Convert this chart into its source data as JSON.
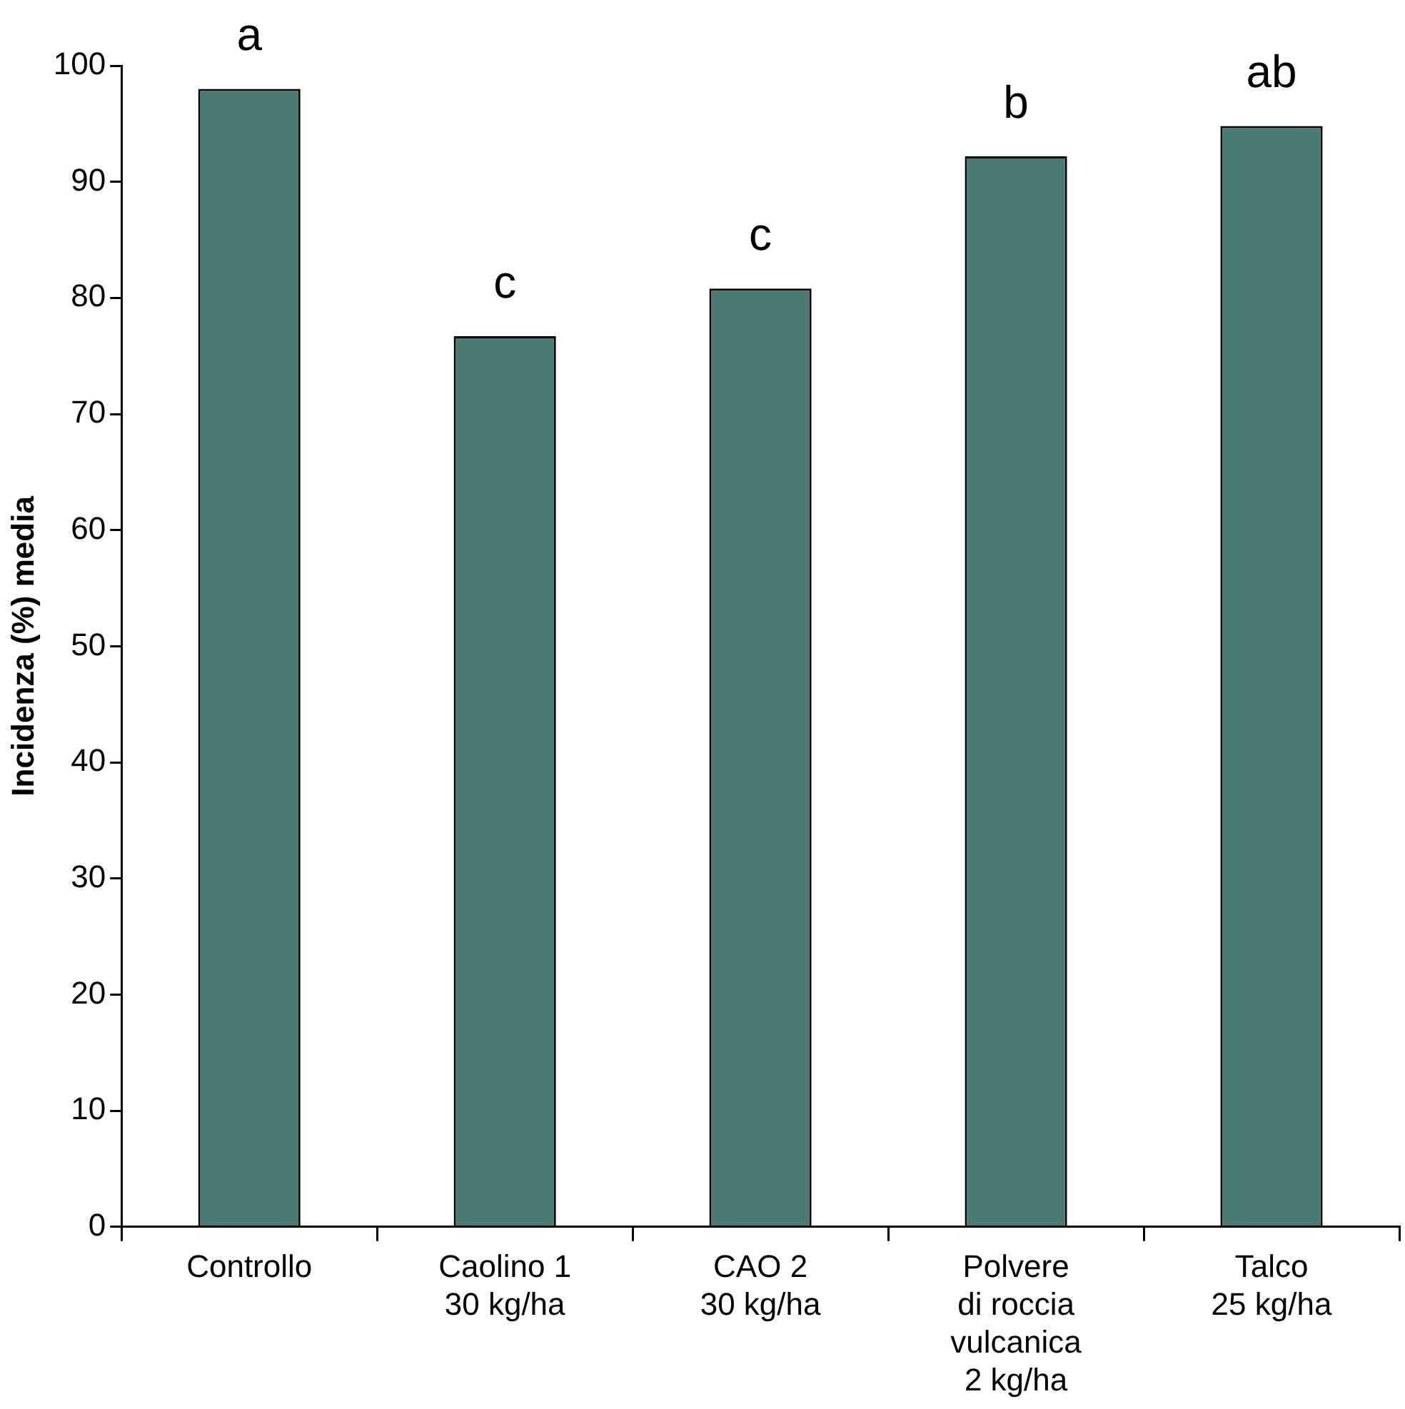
{
  "chart_data": {
    "type": "bar",
    "ylabel": "Incidenza (%) media",
    "categories": [
      "Controllo",
      "Caolino 1\n30 kg/ha",
      "CAO 2\n30 kg/ha",
      "Polvere\ndi roccia\nvulcanica\n2 kg/ha",
      "Talco\n25 kg/ha"
    ],
    "values": [
      98,
      76.7,
      80.8,
      92.2,
      94.8
    ],
    "color": "#497a76",
    "ylim": [
      0,
      100
    ],
    "yticks": [
      0,
      10,
      20,
      30,
      40,
      50,
      60,
      70,
      80,
      90,
      100
    ],
    "grid": false,
    "legend": false,
    "annotations": [
      {
        "text": "a",
        "x": "Controllo",
        "y": 98
      },
      {
        "text": "c",
        "x": "Caolino 1\n30 kg/ha",
        "y": 76.7
      },
      {
        "text": "c",
        "x": "CAO 2\n30 kg/ha",
        "y": 80.8
      },
      {
        "text": "b",
        "x": "Polvere\ndi roccia\nvulcanica\n2 kg/ha",
        "y": 92.2
      },
      {
        "text": "ab",
        "x": "Talco\n25 kg/ha",
        "y": 94.8
      }
    ]
  }
}
